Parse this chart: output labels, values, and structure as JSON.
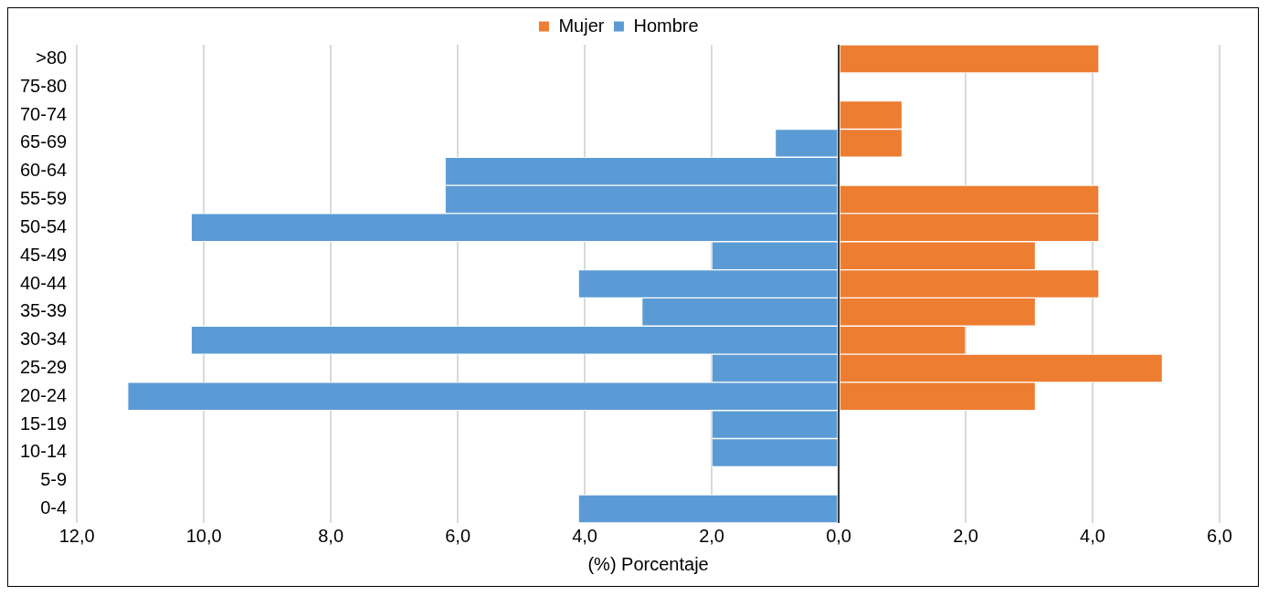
{
  "chart_data": {
    "type": "bar",
    "orientation": "horizontal",
    "stacked": true,
    "xlabel": "(%) Porcentaje",
    "categories": [
      ">80",
      "75-80",
      "70-74",
      "65-69",
      "60-64",
      "55-59",
      "50-54",
      "45-49",
      "40-44",
      "35-39",
      "30-34",
      "25-29",
      "20-24",
      "15-19",
      "10-14",
      "5-9",
      "0-4"
    ],
    "series": [
      {
        "name": "Mujer",
        "color": "#ed7d31",
        "values": [
          4.1,
          null,
          1.0,
          1.0,
          null,
          4.1,
          4.1,
          3.1,
          4.1,
          3.1,
          2.0,
          5.1,
          3.1,
          null,
          null,
          null,
          null
        ]
      },
      {
        "name": "Hombre",
        "color": "#5b9bd5",
        "values": [
          null,
          null,
          null,
          -1.0,
          -6.2,
          -6.2,
          -10.2,
          -2.0,
          -4.1,
          -3.1,
          -10.2,
          -2.0,
          -11.2,
          -2.0,
          -2.0,
          null,
          -4.1
        ]
      }
    ],
    "xlim": [
      -12,
      6
    ],
    "xticks": [
      {
        "value": -12,
        "label": "12,0"
      },
      {
        "value": -10,
        "label": "10,0"
      },
      {
        "value": -8,
        "label": "8,0"
      },
      {
        "value": -6,
        "label": "6,0"
      },
      {
        "value": -4,
        "label": "4,0"
      },
      {
        "value": -2,
        "label": "2,0"
      },
      {
        "value": 0,
        "label": "0,0"
      },
      {
        "value": 2,
        "label": "2,0"
      },
      {
        "value": 4,
        "label": "4,0"
      },
      {
        "value": 6,
        "label": "6,0"
      }
    ],
    "grid": "x",
    "legend": "top"
  }
}
